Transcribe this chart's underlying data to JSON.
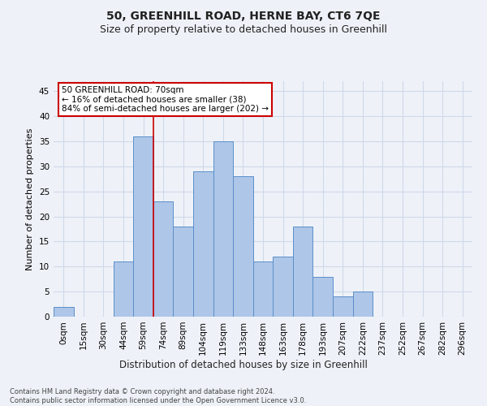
{
  "title1": "50, GREENHILL ROAD, HERNE BAY, CT6 7QE",
  "title2": "Size of property relative to detached houses in Greenhill",
  "xlabel": "Distribution of detached houses by size in Greenhill",
  "ylabel": "Number of detached properties",
  "bar_labels": [
    "0sqm",
    "15sqm",
    "30sqm",
    "44sqm",
    "59sqm",
    "74sqm",
    "89sqm",
    "104sqm",
    "119sqm",
    "133sqm",
    "148sqm",
    "163sqm",
    "178sqm",
    "193sqm",
    "207sqm",
    "222sqm",
    "237sqm",
    "252sqm",
    "267sqm",
    "282sqm",
    "296sqm"
  ],
  "bar_values": [
    2,
    0,
    0,
    11,
    36,
    23,
    18,
    29,
    35,
    28,
    11,
    12,
    18,
    8,
    4,
    5,
    0,
    0,
    0,
    0,
    0
  ],
  "bar_color": "#aec6e8",
  "bar_edge_color": "#5b8fc9",
  "bar_width": 1.0,
  "vline_color": "#cc0000",
  "vline_x": 5.0,
  "annotation_text": "50 GREENHILL ROAD: 70sqm\n← 16% of detached houses are smaller (38)\n84% of semi-detached houses are larger (202) →",
  "annotation_box_color": "#ffffff",
  "annotation_box_edge_color": "#cc0000",
  "ylim": [
    0,
    47
  ],
  "yticks": [
    0,
    5,
    10,
    15,
    20,
    25,
    30,
    35,
    40,
    45
  ],
  "grid_color": "#d0d8e8",
  "background_color": "#eef2f8",
  "footnote": "Contains HM Land Registry data © Crown copyright and database right 2024.\nContains public sector information licensed under the Open Government Licence v3.0.",
  "title1_fontsize": 10,
  "title2_fontsize": 9,
  "xlabel_fontsize": 8.5,
  "ylabel_fontsize": 8,
  "tick_fontsize": 7.5,
  "annot_fontsize": 7.5,
  "footnote_fontsize": 6
}
